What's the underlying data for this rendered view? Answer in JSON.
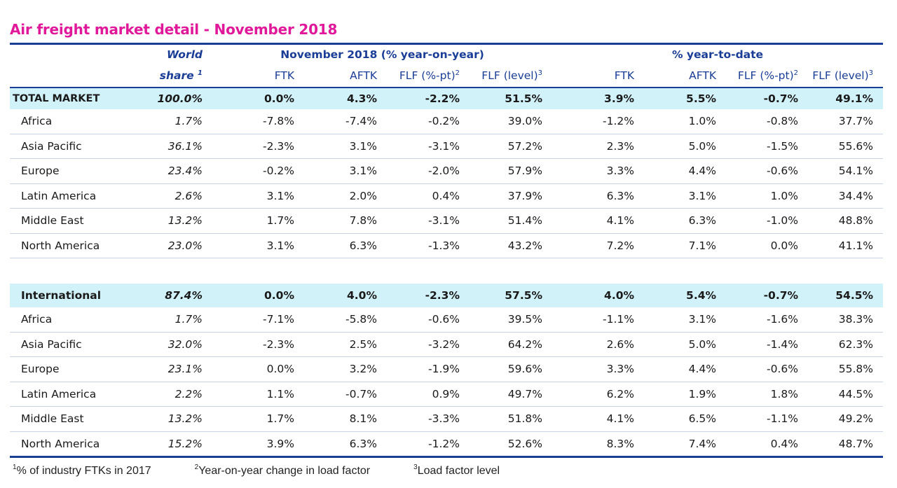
{
  "title": "Air freight market detail - November 2018",
  "header": {
    "share_line1": "World",
    "share_line2": "share",
    "share_sup": "1",
    "group_yoy": "November 2018 (% year-on-year)",
    "group_ytd": "% year-to-date",
    "cols": [
      {
        "label": "FTK",
        "sup": ""
      },
      {
        "label": "AFTK",
        "sup": ""
      },
      {
        "label": "FLF (%-pt)",
        "sup": "2"
      },
      {
        "label": "FLF (level)",
        "sup": "3"
      },
      {
        "label": "FTK",
        "sup": ""
      },
      {
        "label": "AFTK",
        "sup": ""
      },
      {
        "label": "FLF (%-pt)",
        "sup": "2"
      },
      {
        "label": "FLF (level)",
        "sup": "3"
      }
    ]
  },
  "total": {
    "label": "TOTAL MARKET",
    "share": "100.0%",
    "values": [
      "0.0%",
      "4.3%",
      "-2.2%",
      "51.5%",
      "3.9%",
      "5.5%",
      "-0.7%",
      "49.1%"
    ],
    "regions": [
      {
        "label": "Africa",
        "share": "1.7%",
        "values": [
          "-7.8%",
          "-7.4%",
          "-0.2%",
          "39.0%",
          "-1.2%",
          "1.0%",
          "-0.8%",
          "37.7%"
        ]
      },
      {
        "label": "Asia Pacific",
        "share": "36.1%",
        "values": [
          "-2.3%",
          "3.1%",
          "-3.1%",
          "57.2%",
          "2.3%",
          "5.0%",
          "-1.5%",
          "55.6%"
        ]
      },
      {
        "label": "Europe",
        "share": "23.4%",
        "values": [
          "-0.2%",
          "3.1%",
          "-2.0%",
          "57.9%",
          "3.3%",
          "4.4%",
          "-0.6%",
          "54.1%"
        ]
      },
      {
        "label": "Latin America",
        "share": "2.6%",
        "values": [
          "3.1%",
          "2.0%",
          "0.4%",
          "37.9%",
          "6.3%",
          "3.1%",
          "1.0%",
          "34.4%"
        ]
      },
      {
        "label": "Middle East",
        "share": "13.2%",
        "values": [
          "1.7%",
          "7.8%",
          "-3.1%",
          "51.4%",
          "4.1%",
          "6.3%",
          "-1.0%",
          "48.8%"
        ]
      },
      {
        "label": "North America",
        "share": "23.0%",
        "values": [
          "3.1%",
          "6.3%",
          "-1.3%",
          "43.2%",
          "7.2%",
          "7.1%",
          "0.0%",
          "41.1%"
        ]
      }
    ]
  },
  "international": {
    "label": "International",
    "share": "87.4%",
    "values": [
      "0.0%",
      "4.0%",
      "-2.3%",
      "57.5%",
      "4.0%",
      "5.4%",
      "-0.7%",
      "54.5%"
    ],
    "regions": [
      {
        "label": "Africa",
        "share": "1.7%",
        "values": [
          "-7.1%",
          "-5.8%",
          "-0.6%",
          "39.5%",
          "-1.1%",
          "3.1%",
          "-1.6%",
          "38.3%"
        ]
      },
      {
        "label": "Asia Pacific",
        "share": "32.0%",
        "values": [
          "-2.3%",
          "2.5%",
          "-3.2%",
          "64.2%",
          "2.6%",
          "5.0%",
          "-1.4%",
          "62.3%"
        ]
      },
      {
        "label": "Europe",
        "share": "23.1%",
        "values": [
          "0.0%",
          "3.2%",
          "-1.9%",
          "59.6%",
          "3.3%",
          "4.4%",
          "-0.6%",
          "55.8%"
        ]
      },
      {
        "label": "Latin America",
        "share": "2.2%",
        "values": [
          "1.1%",
          "-0.7%",
          "0.9%",
          "49.7%",
          "6.2%",
          "1.9%",
          "1.8%",
          "44.5%"
        ]
      },
      {
        "label": "Middle East",
        "share": "13.2%",
        "values": [
          "1.7%",
          "8.1%",
          "-3.3%",
          "51.8%",
          "4.1%",
          "6.5%",
          "-1.1%",
          "49.2%"
        ]
      },
      {
        "label": "North America",
        "share": "15.2%",
        "values": [
          "3.9%",
          "6.3%",
          "-1.2%",
          "52.6%",
          "8.3%",
          "7.4%",
          "0.4%",
          "48.7%"
        ]
      }
    ]
  },
  "footnotes": [
    {
      "sup": "1",
      "text": "% of industry FTKs in 2017"
    },
    {
      "sup": "2",
      "text": "Year-on-year change in load factor"
    },
    {
      "sup": "3",
      "text": "Load factor level"
    }
  ]
}
